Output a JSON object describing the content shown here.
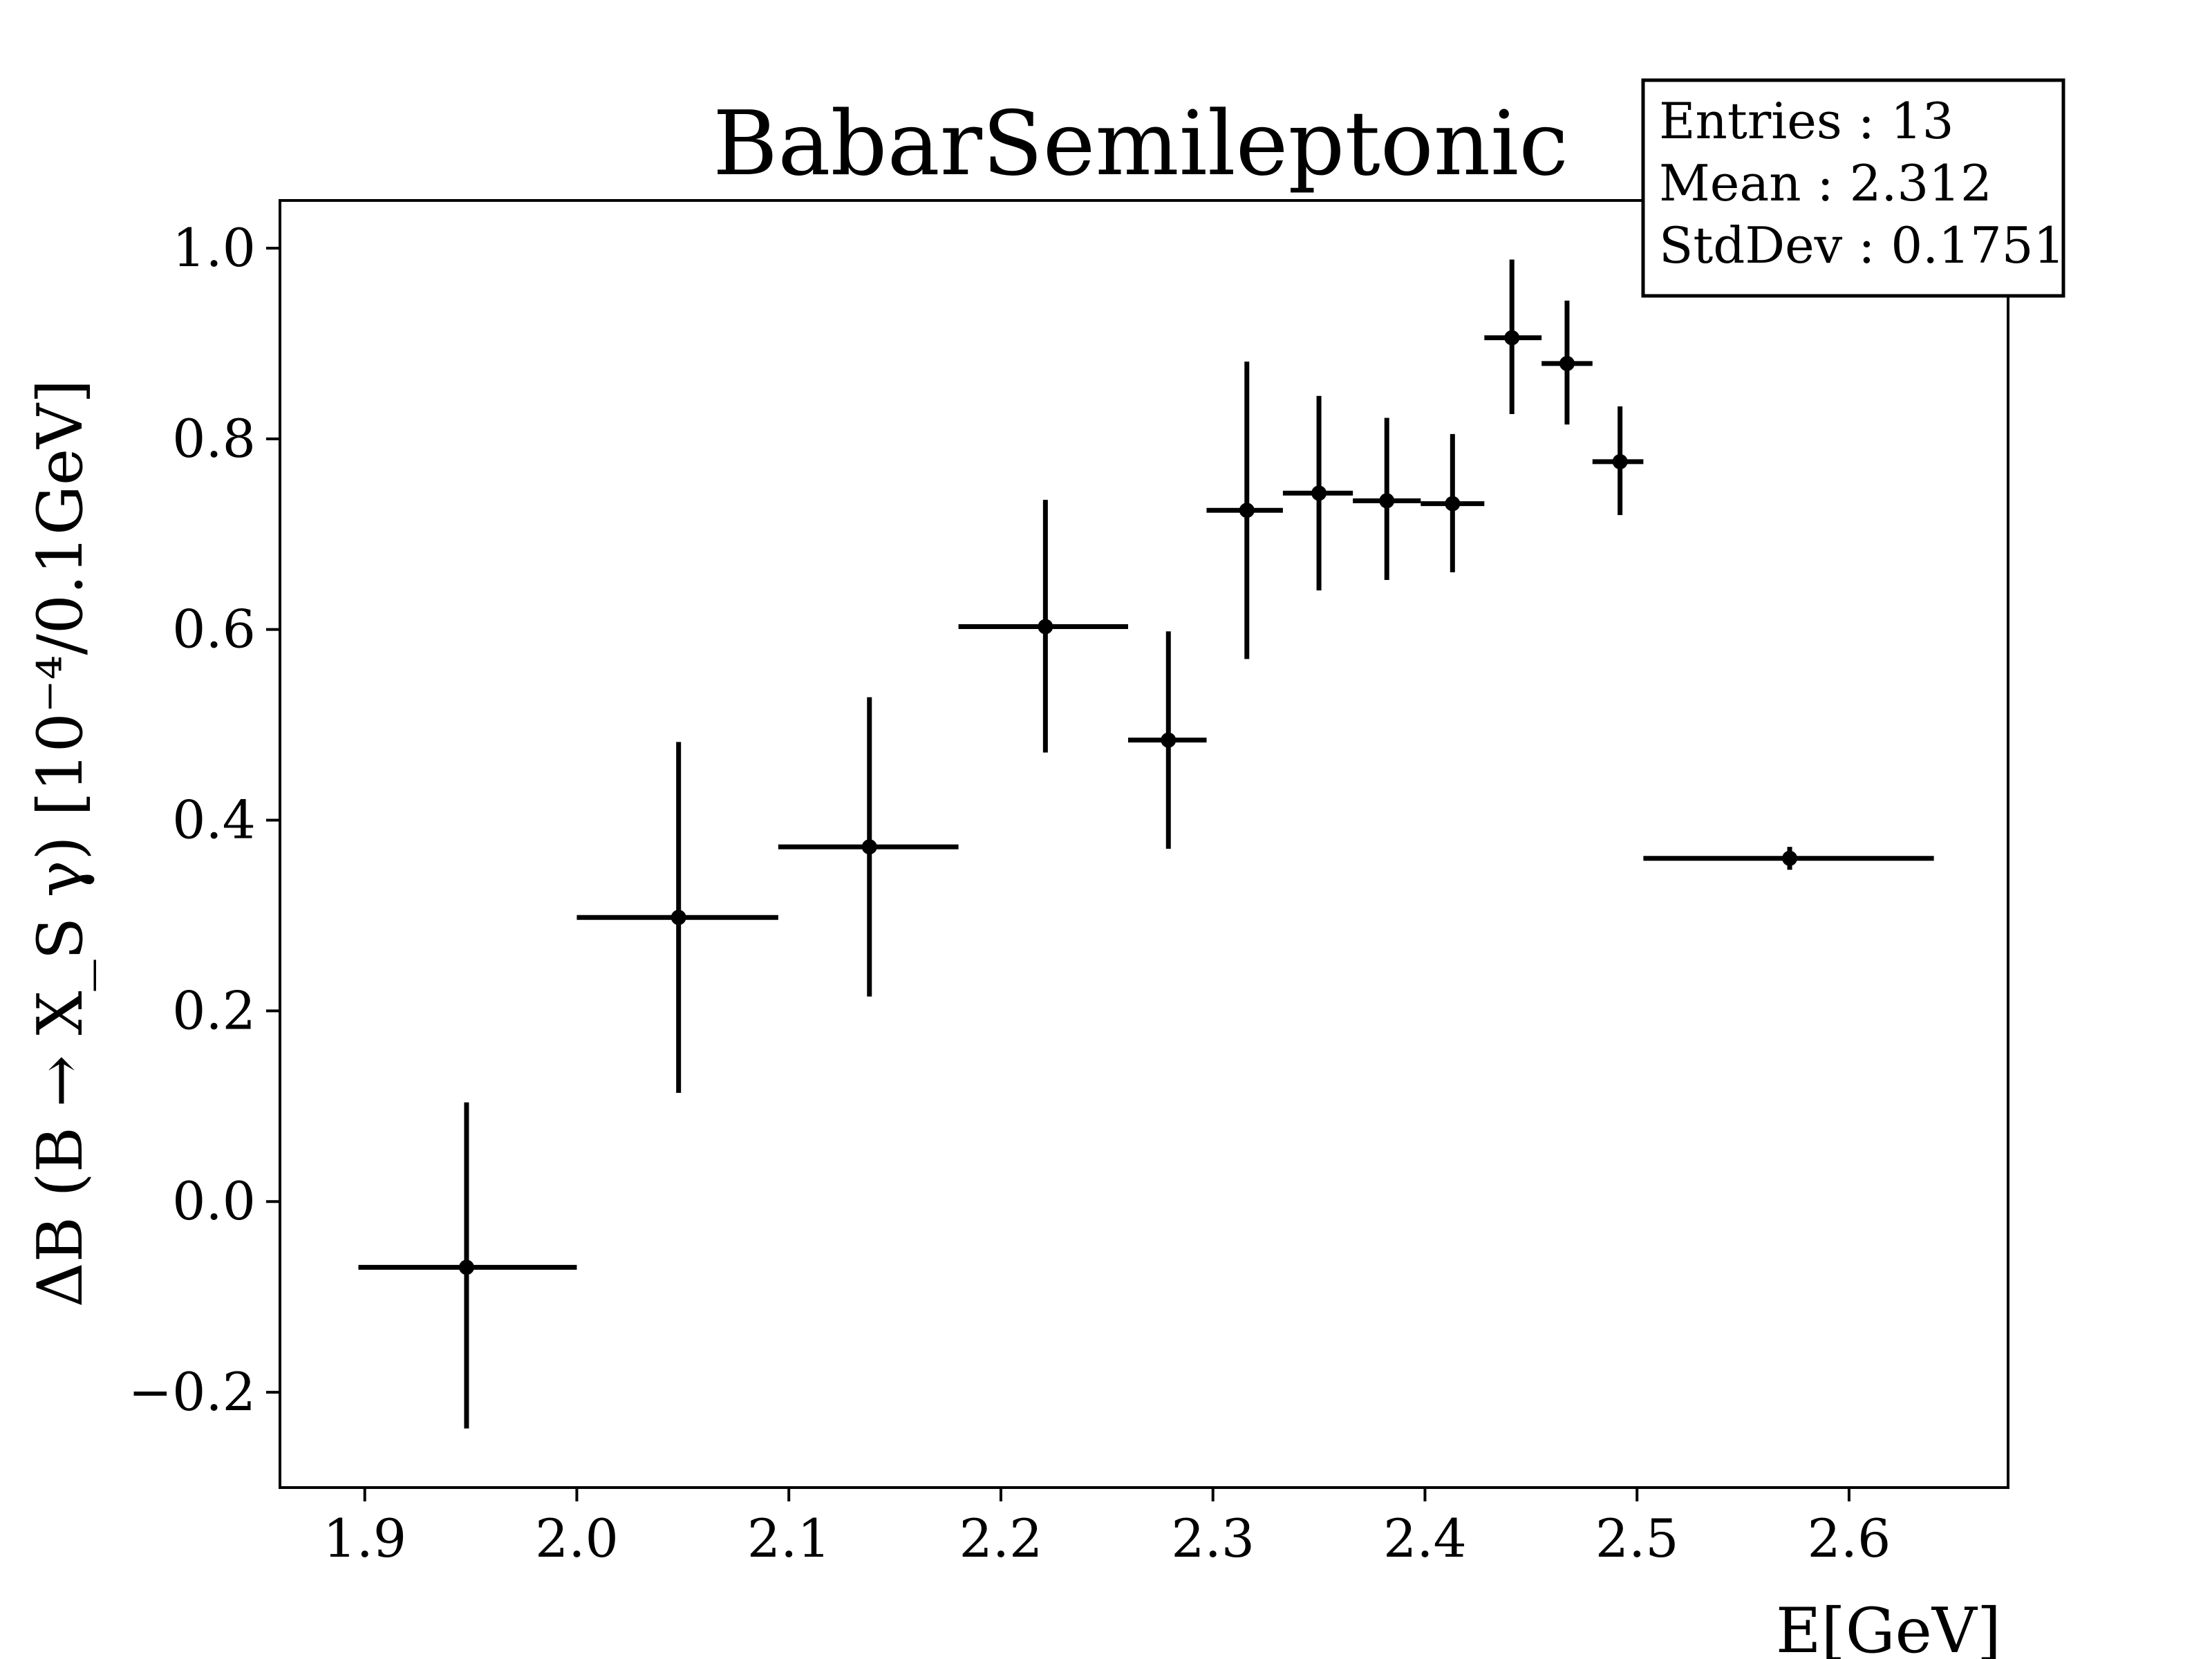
{
  "chart_data": {
    "type": "scatter",
    "title": "BabarSemileptonic",
    "xlabel": "E[GeV]",
    "ylabel": "ΔB (B → X_S γ) [10⁻⁴/0.1GeV]",
    "xlim": [
      1.86,
      2.675
    ],
    "ylim": [
      -0.3,
      1.05
    ],
    "xticks": [
      "1.9",
      "2.0",
      "2.1",
      "2.2",
      "2.3",
      "2.4",
      "2.5",
      "2.6"
    ],
    "xtick_values": [
      1.9,
      2.0,
      2.1,
      2.2,
      2.3,
      2.4,
      2.5,
      2.6
    ],
    "yticks": [
      "−0.2",
      "0.0",
      "0.2",
      "0.4",
      "0.6",
      "0.8",
      "1.0"
    ],
    "ytick_values": [
      -0.2,
      0.0,
      0.2,
      0.4,
      0.6,
      0.8,
      1.0
    ],
    "grid": false,
    "points": [
      {
        "x": 1.948,
        "y": -0.069,
        "xlo": 1.897,
        "xhi": 2.0,
        "ylo": -0.238,
        "yhi": 0.104
      },
      {
        "x": 2.048,
        "y": 0.298,
        "xlo": 2.0,
        "xhi": 2.095,
        "ylo": 0.114,
        "yhi": 0.482
      },
      {
        "x": 2.138,
        "y": 0.372,
        "xlo": 2.095,
        "xhi": 2.18,
        "ylo": 0.215,
        "yhi": 0.529
      },
      {
        "x": 2.221,
        "y": 0.603,
        "xlo": 2.18,
        "xhi": 2.26,
        "ylo": 0.471,
        "yhi": 0.736
      },
      {
        "x": 2.279,
        "y": 0.484,
        "xlo": 2.26,
        "xhi": 2.297,
        "ylo": 0.37,
        "yhi": 0.598
      },
      {
        "x": 2.316,
        "y": 0.725,
        "xlo": 2.297,
        "xhi": 2.333,
        "ylo": 0.569,
        "yhi": 0.881
      },
      {
        "x": 2.35,
        "y": 0.743,
        "xlo": 2.333,
        "xhi": 2.366,
        "ylo": 0.641,
        "yhi": 0.845
      },
      {
        "x": 2.382,
        "y": 0.735,
        "xlo": 2.366,
        "xhi": 2.398,
        "ylo": 0.652,
        "yhi": 0.822
      },
      {
        "x": 2.413,
        "y": 0.732,
        "xlo": 2.398,
        "xhi": 2.428,
        "ylo": 0.66,
        "yhi": 0.805
      },
      {
        "x": 2.441,
        "y": 0.906,
        "xlo": 2.428,
        "xhi": 2.455,
        "ylo": 0.826,
        "yhi": 0.988
      },
      {
        "x": 2.467,
        "y": 0.879,
        "xlo": 2.455,
        "xhi": 2.479,
        "ylo": 0.815,
        "yhi": 0.945
      },
      {
        "x": 2.492,
        "y": 0.776,
        "xlo": 2.479,
        "xhi": 2.503,
        "ylo": 0.72,
        "yhi": 0.834
      },
      {
        "x": 2.572,
        "y": 0.36,
        "xlo": 2.503,
        "xhi": 2.64,
        "ylo": 0.348,
        "yhi": 0.372
      }
    ],
    "stats_box": {
      "entries": "Entries : 13",
      "mean": "Mean : 2.312",
      "stddev": "StdDev : 0.1751"
    }
  }
}
